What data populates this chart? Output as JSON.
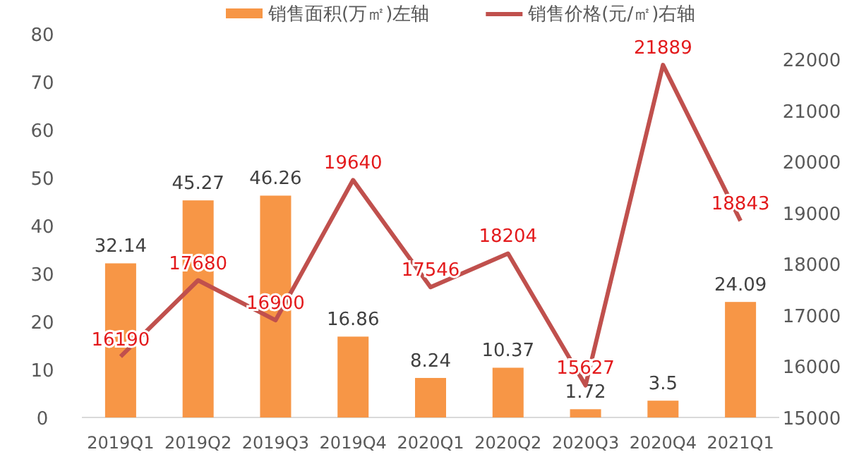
{
  "chart_data": {
    "type": "bar",
    "categories": [
      "2019Q1",
      "2019Q2",
      "2019Q3",
      "2019Q4",
      "2020Q1",
      "2020Q2",
      "2020Q3",
      "2020Q4",
      "2021Q1"
    ],
    "series": [
      {
        "name": "销售面积(万㎡)左轴",
        "color": "#f79646",
        "values": [
          32.14,
          45.27,
          46.26,
          16.86,
          8.24,
          10.37,
          1.72,
          3.5,
          24.09
        ]
      },
      {
        "name": "销售价格(元/㎡)右轴",
        "type": "line",
        "axis": "y2",
        "color": "#c0504d",
        "values": [
          16190,
          17680,
          16900,
          19640,
          17546,
          18204,
          15627,
          21889,
          18843
        ]
      }
    ],
    "ylim": [
      0,
      80
    ],
    "yticks": [
      0,
      10,
      20,
      30,
      40,
      50,
      60,
      70,
      80
    ],
    "y2lim": [
      15000,
      22000
    ],
    "y2ticks": [
      15000,
      16000,
      17000,
      18000,
      19000,
      20000,
      21000,
      22000
    ],
    "data_labels": true,
    "legend": "top",
    "grid": false,
    "marker": "none"
  }
}
